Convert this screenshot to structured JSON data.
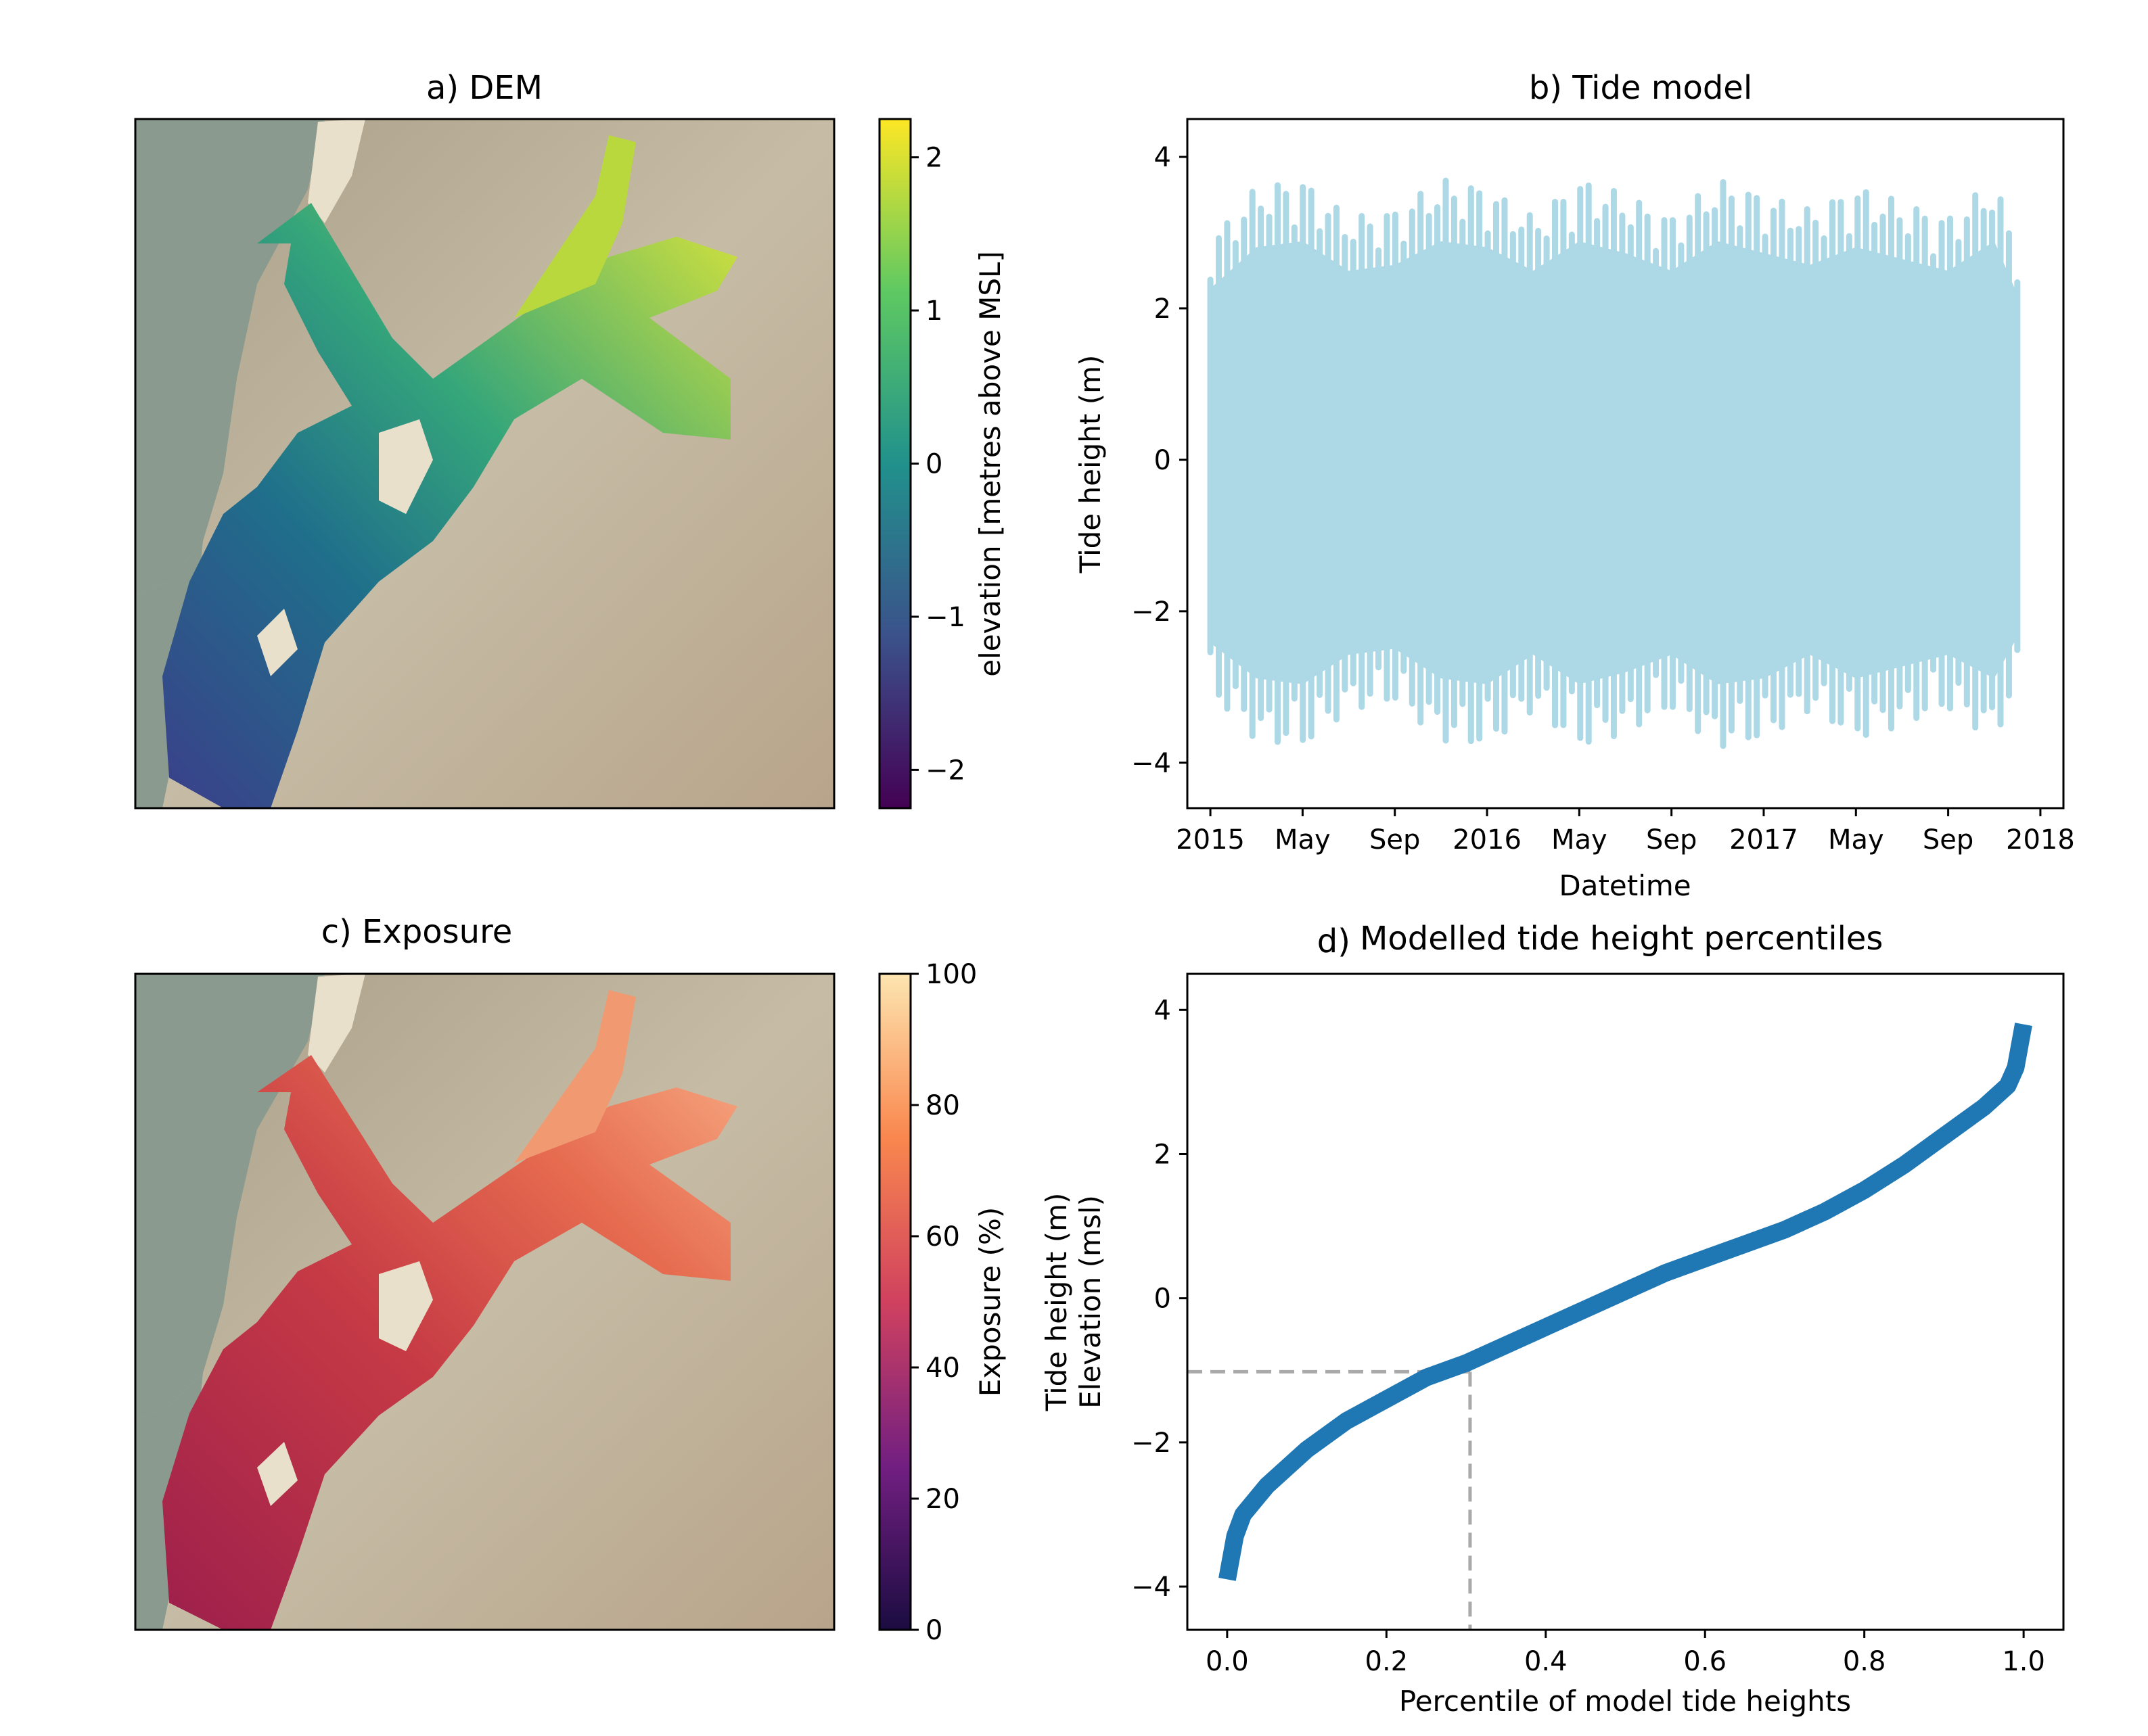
{
  "chart_data": [
    {
      "panel": "a",
      "type": "heatmap",
      "title": "a) DEM",
      "colorbar": {
        "label": "elevation [metres above MSL]",
        "colormap": "viridis",
        "ticks": [
          "2",
          "1",
          "0",
          "−1",
          "−2"
        ],
        "tick_values": [
          2,
          1,
          0,
          -1,
          -2
        ],
        "range": [
          -2.25,
          2.25
        ]
      },
      "colors": {
        "low": "#440154",
        "mid": "#21918c",
        "high": "#fde725",
        "land": "#b9ac8f",
        "water": "#8a9a8e"
      }
    },
    {
      "panel": "b",
      "type": "area",
      "title": "b) Tide model",
      "xlabel": "Datetime",
      "ylabel": "Tide height (m)",
      "x_tick_labels": [
        "2015",
        "May",
        "Sep",
        "2016",
        "May",
        "Sep",
        "2017",
        "May",
        "Sep",
        "2018"
      ],
      "x_tick_dates": [
        "2015-01",
        "2015-05",
        "2015-09",
        "2016-01",
        "2016-05",
        "2016-09",
        "2017-01",
        "2017-05",
        "2017-09",
        "2018-01"
      ],
      "x_range": [
        "2014-12",
        "2018-02"
      ],
      "y_tick_labels": [
        "4",
        "2",
        "0",
        "−2",
        "−4"
      ],
      "y_tick_values": [
        4,
        2,
        0,
        -2,
        -4
      ],
      "ylim": [
        -4.6,
        4.5
      ],
      "envelope": {
        "dates": [
          "2015-01",
          "2015-03",
          "2015-05",
          "2015-07",
          "2015-09",
          "2015-11",
          "2016-01",
          "2016-03",
          "2016-05",
          "2016-07",
          "2016-09",
          "2016-11",
          "2017-01",
          "2017-03",
          "2017-05",
          "2017-07",
          "2017-09",
          "2017-11",
          "2017-12"
        ],
        "max": [
          2.9,
          3.6,
          3.7,
          3.2,
          3.3,
          3.7,
          3.6,
          3.2,
          3.7,
          3.5,
          3.2,
          3.7,
          3.5,
          3.3,
          3.6,
          3.4,
          3.2,
          3.7,
          2.8
        ],
        "min": [
          -3.1,
          -3.7,
          -3.8,
          -3.3,
          -3.2,
          -3.7,
          -3.8,
          -3.3,
          -3.8,
          -3.6,
          -3.3,
          -3.8,
          -3.7,
          -3.3,
          -3.7,
          -3.5,
          -3.3,
          -3.7,
          -3.0
        ]
      },
      "colors": {
        "series": "#add8e6"
      }
    },
    {
      "panel": "c",
      "type": "heatmap",
      "title": "c) Exposure",
      "colorbar": {
        "label": "Exposure (%)",
        "colormap": "magma",
        "ticks": [
          "100",
          "80",
          "60",
          "40",
          "20",
          "0"
        ],
        "tick_values": [
          100,
          80,
          60,
          40,
          20,
          0
        ],
        "range": [
          0,
          100
        ]
      },
      "colors": {
        "low": "#2b0f3a",
        "mid": "#b02a4a",
        "high": "#fde5b0",
        "land": "#b9ac8f",
        "water": "#8a9a8e"
      }
    },
    {
      "panel": "d",
      "type": "line",
      "title": "Modelled tide height percentiles",
      "title_prefix": "d)",
      "xlabel": "Percentile of model tide heights",
      "ylabel": "Tide height (m)",
      "ylabel2": "Elevation (msl)",
      "x_tick_labels": [
        "0.0",
        "0.2",
        "0.4",
        "0.6",
        "0.8",
        "1.0"
      ],
      "x_tick_values": [
        0,
        0.2,
        0.4,
        0.6,
        0.8,
        1.0
      ],
      "y_tick_labels": [
        "4",
        "2",
        "0",
        "−2",
        "−4"
      ],
      "y_tick_values": [
        4,
        2,
        0,
        -2,
        -4
      ],
      "xlim": [
        -0.05,
        1.05
      ],
      "ylim": [
        -4.6,
        4.5
      ],
      "x": [
        0.0,
        0.01,
        0.02,
        0.05,
        0.1,
        0.15,
        0.2,
        0.25,
        0.3,
        0.35,
        0.4,
        0.45,
        0.5,
        0.55,
        0.6,
        0.65,
        0.7,
        0.75,
        0.8,
        0.85,
        0.9,
        0.95,
        0.98,
        0.99,
        1.0
      ],
      "y": [
        -3.9,
        -3.3,
        -3.0,
        -2.6,
        -2.1,
        -1.7,
        -1.4,
        -1.1,
        -0.9,
        -0.65,
        -0.4,
        -0.15,
        0.1,
        0.35,
        0.55,
        0.75,
        0.95,
        1.2,
        1.5,
        1.85,
        2.25,
        2.65,
        2.95,
        3.2,
        3.8
      ],
      "reference": {
        "x": 0.305,
        "y": -1.02
      },
      "colors": {
        "series": "#1f77b4",
        "reference": "#aaaaaa"
      }
    }
  ]
}
